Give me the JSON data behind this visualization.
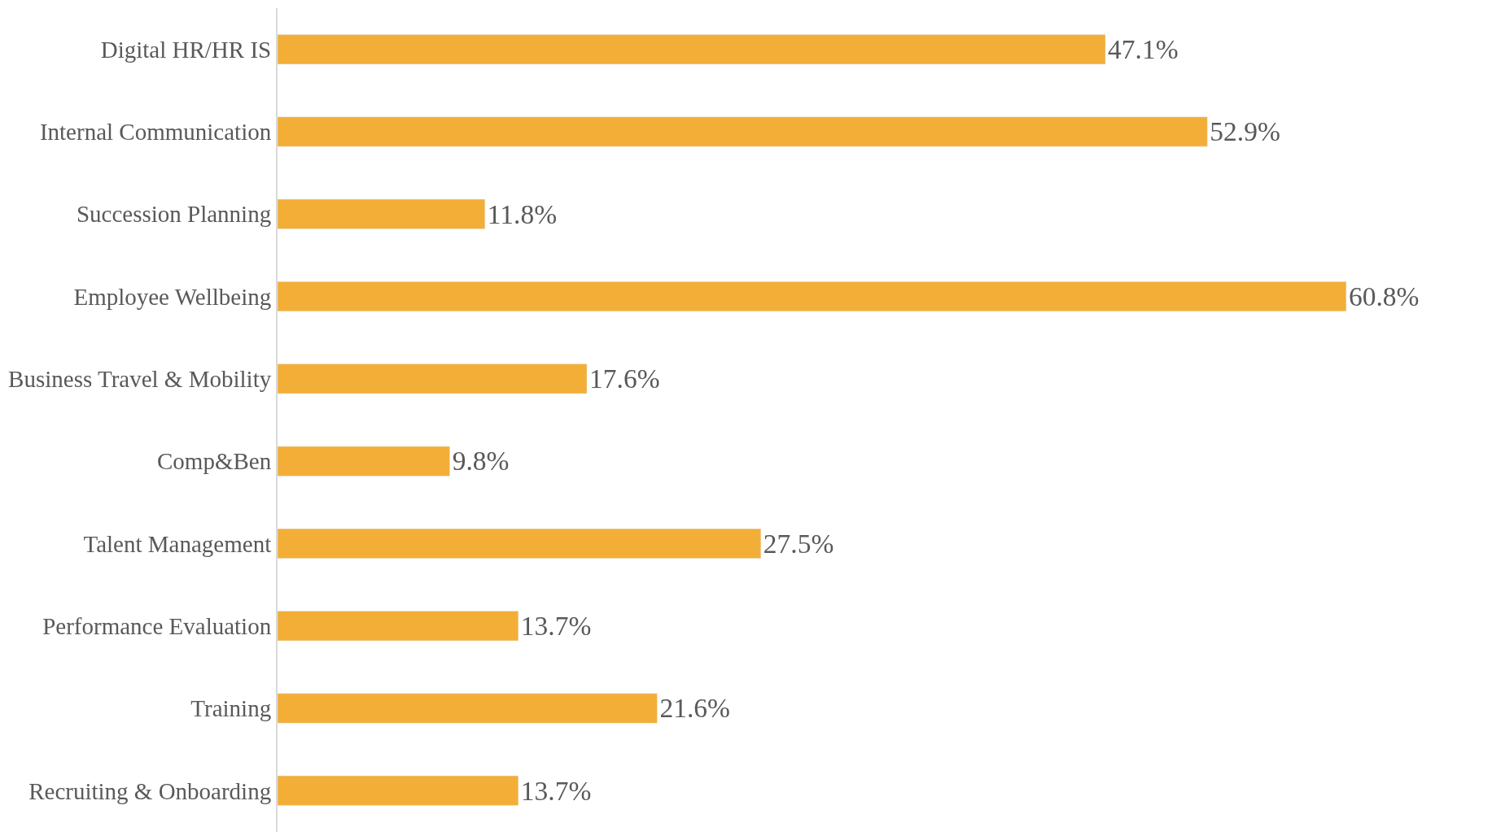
{
  "chart_data": {
    "type": "bar",
    "orientation": "horizontal",
    "categories": [
      "Digital HR/HR IS",
      "Internal Communication",
      "Succession Planning",
      "Employee Wellbeing",
      "Business Travel & Mobility",
      "Comp&Ben",
      "Talent Management",
      "Performance Evaluation",
      "Training",
      "Recruiting & Onboarding"
    ],
    "values": [
      47.1,
      52.9,
      11.8,
      60.8,
      17.6,
      9.8,
      27.5,
      13.7,
      21.6,
      13.7
    ],
    "value_labels": [
      "47.1%",
      "52.9%",
      "11.8%",
      "60.8%",
      "17.6%",
      "9.8%",
      "27.5%",
      "13.7%",
      "21.6%",
      "13.7%"
    ],
    "color": "#f2ae37"
  }
}
